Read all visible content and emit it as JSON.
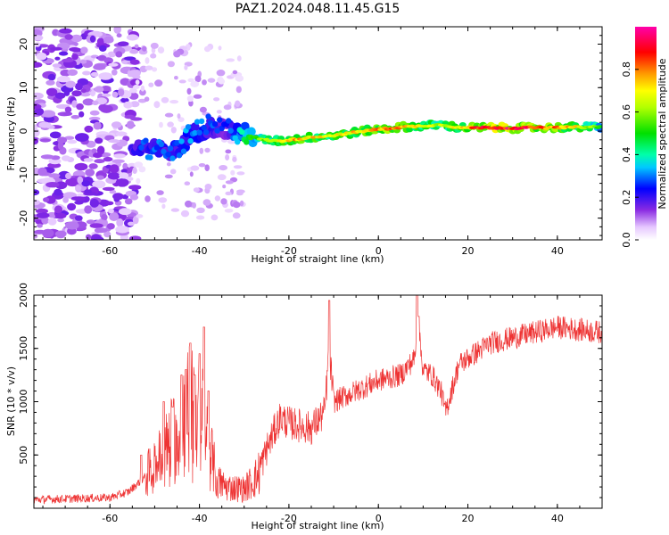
{
  "title": "PAZ1.2024.048.11.45.G15",
  "chart_data": [
    {
      "type": "heatmap",
      "xlabel": "Height of straight line (km)",
      "ylabel": "Frequency (Hz)",
      "xlim": [
        -77,
        50
      ],
      "ylim": [
        -25,
        24
      ],
      "xticks": [
        -60,
        -40,
        -20,
        0,
        20,
        40
      ],
      "yticks": [
        -20,
        -10,
        0,
        10,
        20
      ],
      "colorbar": {
        "label": "Normalized spectral amplitude",
        "range": [
          0,
          1
        ],
        "ticks": [
          0.0,
          0.2,
          0.4,
          0.6,
          0.8
        ],
        "tick_labels": [
          "0.0",
          "0.2",
          "0.4",
          "0.6",
          "0.8"
        ],
        "colormap": "gist_ncar-like (white-purple-blue-cyan-green-yellow-orange-red-pink)"
      },
      "ridge": {
        "description": "dominant frequency ridge vs height",
        "x": [
          -52,
          -46,
          -42,
          -38,
          -34,
          -30,
          -26,
          -22,
          -18,
          -14,
          -10,
          -6,
          -2,
          2,
          6,
          10,
          14,
          18,
          22,
          26,
          30,
          34,
          38,
          42,
          46,
          50
        ],
        "frequency": [
          -4,
          -5,
          -1,
          1,
          0.5,
          -0.5,
          -2,
          -2.3,
          -1.8,
          -1.3,
          -1,
          -0.4,
          0.2,
          0.6,
          1,
          1.2,
          1.5,
          0.8,
          0.8,
          0.8,
          0.7,
          0.8,
          0.8,
          0.9,
          0.9,
          1.0
        ],
        "amplitude": [
          0.3,
          0.3,
          0.35,
          0.3,
          0.25,
          0.45,
          0.6,
          0.7,
          0.8,
          0.75,
          0.7,
          0.75,
          0.8,
          0.85,
          0.8,
          0.7,
          0.65,
          0.75,
          0.9,
          0.95,
          0.95,
          0.9,
          0.85,
          0.8,
          0.7,
          0.5
        ]
      }
    },
    {
      "type": "line",
      "xlabel": "Height of straight line (km)",
      "ylabel": "SNR (10 * v/v)",
      "xlim": [
        -77,
        50
      ],
      "ylim": [
        0,
        2000
      ],
      "xticks": [
        -60,
        -40,
        -20,
        0,
        20,
        40
      ],
      "yticks": [
        500,
        1000,
        1500,
        2000
      ],
      "series": [
        {
          "color": "#ee3333",
          "envelope_x": [
            -77,
            -60,
            -56,
            -52,
            -48,
            -44,
            -42,
            -40,
            -38,
            -36,
            -34,
            -30,
            -27,
            -25,
            -22,
            -20,
            -15,
            -12,
            -11,
            -10,
            -5,
            0,
            5,
            8,
            9,
            10,
            12,
            14,
            15,
            18,
            25,
            30,
            40,
            50
          ],
          "envelope_y": [
            80,
            100,
            150,
            300,
            500,
            800,
            1000,
            900,
            600,
            250,
            200,
            180,
            300,
            550,
            850,
            800,
            750,
            900,
            1500,
            1000,
            1100,
            1200,
            1250,
            1400,
            1650,
            1300,
            1250,
            1100,
            900,
            1350,
            1550,
            1600,
            1700,
            1650
          ],
          "spikes_x": [
            -48,
            -46,
            -44,
            -43,
            -42,
            -41,
            -40,
            -39,
            -38,
            -11,
            8.6,
            9,
            -53
          ],
          "spikes_y": [
            1000,
            950,
            1250,
            1300,
            1550,
            1250,
            1450,
            1700,
            1100,
            1950,
            2000,
            1800,
            500
          ]
        }
      ]
    }
  ]
}
